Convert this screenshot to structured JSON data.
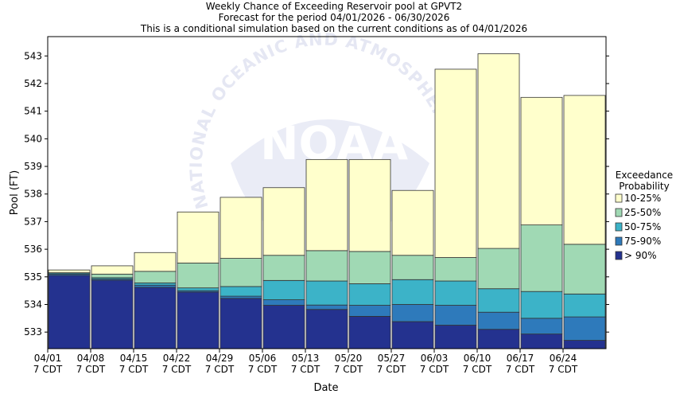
{
  "chart_data": {
    "type": "bar",
    "stacked": true,
    "title": "Weekly Chance of Exceeding Reservoir pool at GPVT2",
    "subtitle": "Forecast for the period 04/01/2026 - 06/30/2026",
    "subtitle2": "This is a conditional simulation based on the current conditions as of 04/01/2026",
    "xlabel": "Date",
    "ylabel": "Pool (FT)",
    "ylim": [
      532.4,
      543.7
    ],
    "yticks": [
      533,
      534,
      535,
      536,
      537,
      538,
      539,
      540,
      541,
      542,
      543
    ],
    "grid": false,
    "x_ticks": [
      {
        "date": "04/01",
        "tz": "7 CDT"
      },
      {
        "date": "04/08",
        "tz": "7 CDT"
      },
      {
        "date": "04/15",
        "tz": "7 CDT"
      },
      {
        "date": "04/22",
        "tz": "7 CDT"
      },
      {
        "date": "04/29",
        "tz": "7 CDT"
      },
      {
        "date": "05/06",
        "tz": "7 CDT"
      },
      {
        "date": "05/13",
        "tz": "7 CDT"
      },
      {
        "date": "05/20",
        "tz": "7 CDT"
      },
      {
        "date": "05/27",
        "tz": "7 CDT"
      },
      {
        "date": "06/03",
        "tz": "7 CDT"
      },
      {
        "date": "06/10",
        "tz": "7 CDT"
      },
      {
        "date": "06/17",
        "tz": "7 CDT"
      },
      {
        "date": "06/24",
        "tz": "7 CDT"
      }
    ],
    "legend": {
      "title_line1": "Exceedance",
      "title_line2": "Probability",
      "placement": "right"
    },
    "series": [
      {
        "name": "> 90%",
        "color": "#24328f",
        "tops": [
          535.05,
          534.88,
          534.62,
          534.45,
          534.22,
          533.97,
          533.82,
          533.57,
          533.38,
          533.25,
          533.1,
          532.93,
          532.7
        ]
      },
      {
        "name": "75-90%",
        "color": "#2e7abb",
        "tops": [
          535.1,
          534.92,
          534.7,
          534.5,
          534.3,
          534.17,
          533.98,
          533.97,
          534.0,
          533.97,
          533.72,
          533.5,
          533.55
        ]
      },
      {
        "name": "50-75%",
        "color": "#3cb3c8",
        "tops": [
          535.14,
          534.97,
          534.78,
          534.6,
          534.65,
          534.87,
          534.85,
          534.75,
          534.9,
          534.85,
          534.57,
          534.47,
          534.38
        ]
      },
      {
        "name": "25-50%",
        "color": "#a0d9b4",
        "tops": [
          535.15,
          535.1,
          535.2,
          535.5,
          535.67,
          535.78,
          535.95,
          535.92,
          535.78,
          535.7,
          536.03,
          536.88,
          536.18
        ]
      },
      {
        "name": "10-25%",
        "color": "#ffffcc",
        "tops": [
          535.25,
          535.4,
          535.88,
          537.35,
          537.88,
          538.23,
          539.25,
          539.25,
          538.13,
          542.52,
          543.08,
          541.5,
          541.57
        ]
      }
    ],
    "legend_order": [
      "10-25%",
      "25-50%",
      "50-75%",
      "75-90%",
      "> 90%"
    ],
    "watermark": "NATIONAL OCEANIC AND ATMOSPHERIC ADMINISTRATION",
    "watermark_logo": "NOAA"
  }
}
